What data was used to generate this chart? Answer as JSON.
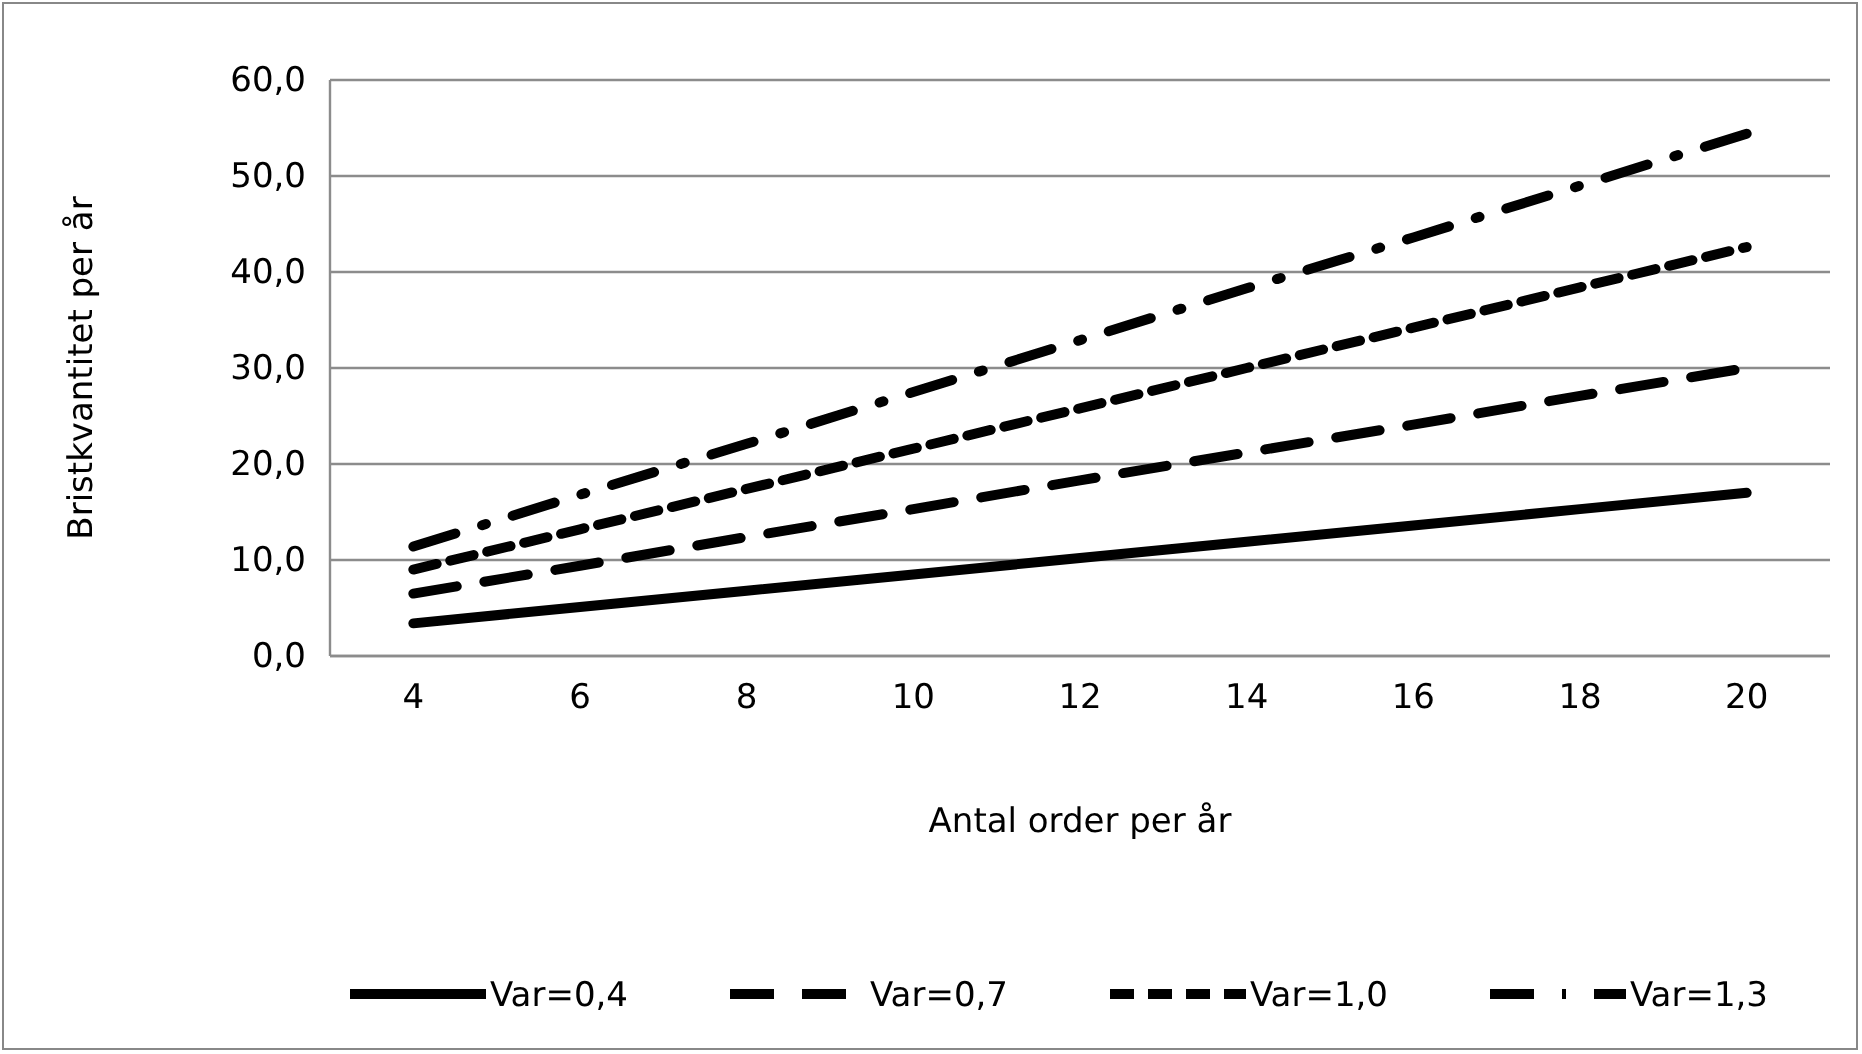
{
  "chart_data": {
    "type": "line",
    "xlabel": "Antal order per år",
    "ylabel": "Bristkvantitet per år",
    "categories": [
      "4",
      "6",
      "8",
      "10",
      "12",
      "14",
      "16",
      "18",
      "20"
    ],
    "ylim": [
      0,
      60
    ],
    "yticks": [
      {
        "value": 0,
        "label": "0,0"
      },
      {
        "value": 10,
        "label": "10,0"
      },
      {
        "value": 20,
        "label": "20,0"
      },
      {
        "value": 30,
        "label": "30,0"
      },
      {
        "value": 40,
        "label": "40,0"
      },
      {
        "value": 50,
        "label": "50,0"
      },
      {
        "value": 60,
        "label": "60,0"
      }
    ],
    "grid": "y",
    "legend": "bottom",
    "marker": "none",
    "series": [
      {
        "name": "Var=0,4",
        "color": "#000000",
        "line_style": "solid",
        "values": [
          3.4,
          5.1,
          6.8,
          8.5,
          10.2,
          11.9,
          13.6,
          15.3,
          17.0
        ]
      },
      {
        "name": "Var=0,7",
        "color": "#000000",
        "line_style": "longdash",
        "values": [
          6.5,
          9.4,
          12.4,
          15.3,
          18.3,
          21.2,
          24.1,
          27.1,
          30.0
        ]
      },
      {
        "name": "Var=1,0",
        "color": "#000000",
        "line_style": "dashed",
        "values": [
          9.0,
          13.2,
          17.4,
          21.6,
          25.8,
          30.0,
          34.2,
          38.4,
          42.6
        ]
      },
      {
        "name": "Var=1,3",
        "color": "#000000",
        "line_style": "dashdot",
        "values": [
          11.4,
          16.8,
          22.1,
          27.5,
          32.9,
          38.3,
          43.6,
          49.0,
          54.4
        ]
      }
    ]
  }
}
